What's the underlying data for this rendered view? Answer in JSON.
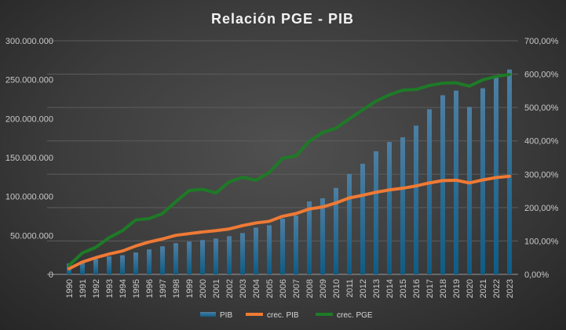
{
  "chart_data": {
    "type": "bar+line",
    "title": "Relación PGE - PIB",
    "categories": [
      "1990",
      "1991",
      "1992",
      "1993",
      "1994",
      "1995",
      "1996",
      "1997",
      "1998",
      "1999",
      "2000",
      "2001",
      "2002",
      "2003",
      "2004",
      "2005",
      "2006",
      "2007",
      "2008",
      "2009",
      "2010",
      "2011",
      "2012",
      "2013",
      "2014",
      "2015",
      "2016",
      "2017",
      "2018",
      "2019",
      "2020",
      "2021",
      "2022",
      "2023"
    ],
    "left_axis": {
      "ylim": [
        0,
        300000000
      ],
      "ticks": [
        "0",
        "50.000.000",
        "100.000.000",
        "150.000.000",
        "200.000.000",
        "250.000.000",
        "300.000.000"
      ]
    },
    "right_axis": {
      "ylim": [
        0,
        700
      ],
      "ticks": [
        "0,00%",
        "100,00%",
        "200,00%",
        "300,00%",
        "400,00%",
        "500,00%",
        "600,00%",
        "700,00%"
      ]
    },
    "grid": true,
    "legend_position": "bottom",
    "series": [
      {
        "name": "PIB",
        "type": "bar",
        "axis": "left",
        "color": "#2f6f98",
        "values": [
          14000000,
          17000000,
          19500000,
          23000000,
          24500000,
          28000000,
          32000000,
          36000000,
          40000000,
          42000000,
          44000000,
          46000000,
          49000000,
          53000000,
          60000000,
          63000000,
          71500000,
          75500000,
          93700000,
          97700000,
          111000000,
          129000000,
          142000000,
          158000000,
          170000000,
          176000000,
          191000000,
          212000000,
          230000000,
          236000000,
          215000000,
          239000000,
          253000000,
          263000000
        ]
      },
      {
        "name": "crec. PIB",
        "type": "line",
        "axis": "right",
        "color": "#ef7a35",
        "values": [
          17,
          37,
          50,
          61,
          70,
          85,
          97,
          106,
          117,
          122,
          127,
          131,
          136,
          146,
          154,
          159,
          174,
          182,
          196,
          202,
          214,
          229,
          237,
          246,
          253,
          258,
          265,
          274,
          281,
          282,
          274,
          283,
          290,
          294
        ]
      },
      {
        "name": "crec. PGE",
        "type": "line",
        "axis": "right",
        "color": "#1e7a27",
        "values": [
          27,
          64,
          81,
          110,
          131,
          163,
          167,
          182,
          218,
          251,
          255,
          244,
          277,
          291,
          282,
          305,
          348,
          355,
          399,
          425,
          438,
          466,
          493,
          519,
          538,
          552,
          554,
          566,
          573,
          574,
          564,
          583,
          593,
          599
        ]
      }
    ]
  }
}
